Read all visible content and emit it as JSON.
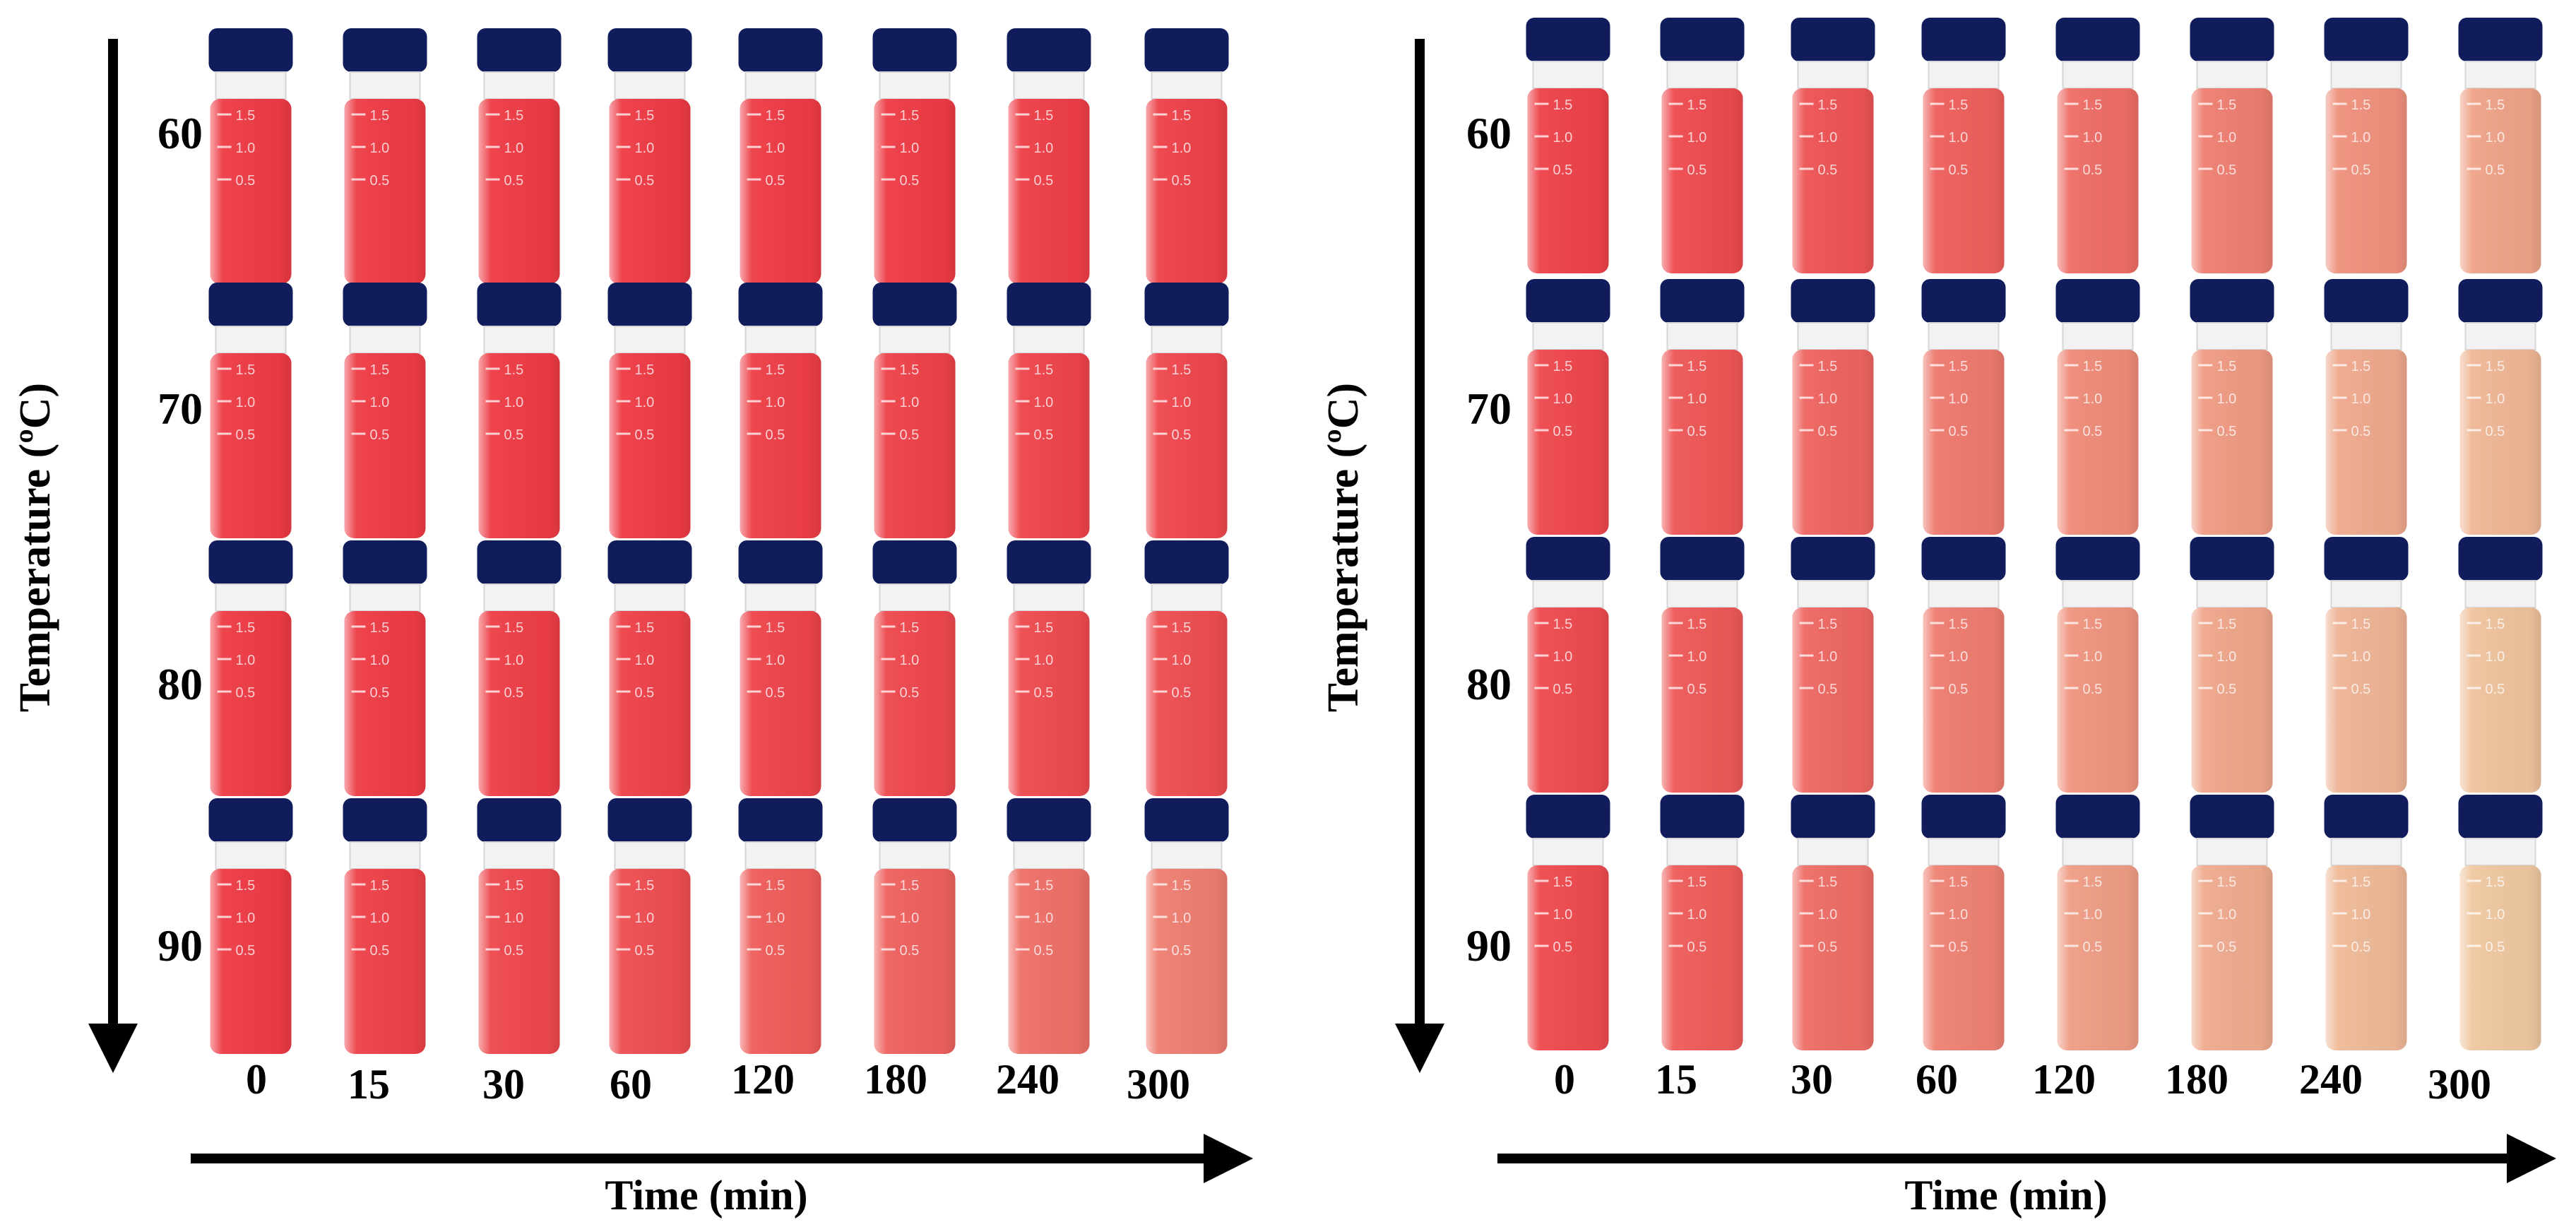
{
  "panels": [
    {
      "y_axis_label": "Temperature (ºC)",
      "x_axis_label": "Time (min)",
      "temperatures": [
        "60",
        "70",
        "80",
        "90"
      ],
      "times": [
        "0",
        "15",
        "30",
        "60",
        "120",
        "180",
        "240",
        "300"
      ],
      "fade_by_row": [
        [
          0.0,
          0.0,
          0.0,
          0.0,
          0.0,
          0.0,
          0.02,
          0.04
        ],
        [
          0.0,
          0.0,
          0.0,
          0.0,
          0.02,
          0.04,
          0.06,
          0.08
        ],
        [
          0.0,
          0.0,
          0.02,
          0.04,
          0.06,
          0.08,
          0.1,
          0.12
        ],
        [
          0.0,
          0.04,
          0.08,
          0.12,
          0.22,
          0.26,
          0.36,
          0.45
        ]
      ]
    },
    {
      "y_axis_label": "Temperature (ºC)",
      "x_axis_label": "Time (min)",
      "temperatures": [
        "60",
        "70",
        "80",
        "90"
      ],
      "times": [
        "0",
        "15",
        "30",
        "60",
        "120",
        "180",
        "240",
        "300"
      ],
      "fade_by_row": [
        [
          0.05,
          0.1,
          0.16,
          0.24,
          0.34,
          0.45,
          0.58,
          0.7
        ],
        [
          0.08,
          0.18,
          0.28,
          0.42,
          0.54,
          0.64,
          0.74,
          0.84
        ],
        [
          0.1,
          0.2,
          0.3,
          0.44,
          0.6,
          0.72,
          0.82,
          0.92
        ],
        [
          0.1,
          0.22,
          0.34,
          0.48,
          0.66,
          0.76,
          0.86,
          0.95
        ]
      ]
    }
  ],
  "vial_markings": [
    "1.5",
    "1.0",
    "0.5"
  ],
  "colors": {
    "liquid_start": "#ee3b45",
    "liquid_end": "#efcfa6",
    "cap": "#101c5c",
    "axis": "#000000"
  }
}
